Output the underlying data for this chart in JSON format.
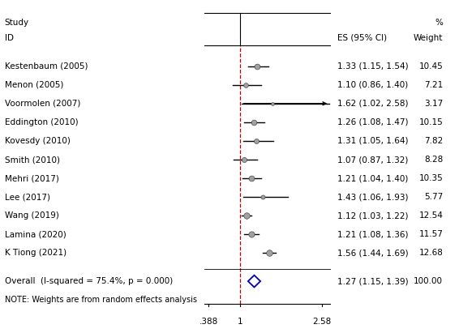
{
  "studies": [
    {
      "label": "Kestenbaum (2005)",
      "es": 1.33,
      "ci_lo": 1.15,
      "ci_hi": 1.54,
      "weight": 10.45
    },
    {
      "label": "Menon (2005)",
      "es": 1.1,
      "ci_lo": 0.86,
      "ci_hi": 1.4,
      "weight": 7.21
    },
    {
      "label": "Voormolen (2007)",
      "es": 1.62,
      "ci_lo": 1.02,
      "ci_hi": 2.58,
      "weight": 3.17,
      "arrow": true
    },
    {
      "label": "Eddington (2010)",
      "es": 1.26,
      "ci_lo": 1.08,
      "ci_hi": 1.47,
      "weight": 10.15
    },
    {
      "label": "Kovesdy (2010)",
      "es": 1.31,
      "ci_lo": 1.05,
      "ci_hi": 1.64,
      "weight": 7.82
    },
    {
      "label": "Smith (2010)",
      "es": 1.07,
      "ci_lo": 0.87,
      "ci_hi": 1.32,
      "weight": 8.28
    },
    {
      "label": "Mehri (2017)",
      "es": 1.21,
      "ci_lo": 1.04,
      "ci_hi": 1.4,
      "weight": 10.35
    },
    {
      "label": "Lee (2017)",
      "es": 1.43,
      "ci_lo": 1.06,
      "ci_hi": 1.93,
      "weight": 5.77
    },
    {
      "label": "Wang (2019)",
      "es": 1.12,
      "ci_lo": 1.03,
      "ci_hi": 1.22,
      "weight": 12.54
    },
    {
      "label": "Lamina (2020)",
      "es": 1.21,
      "ci_lo": 1.08,
      "ci_hi": 1.36,
      "weight": 11.57
    },
    {
      "label": "K Tiong (2021)",
      "es": 1.56,
      "ci_lo": 1.44,
      "ci_hi": 1.69,
      "weight": 12.68
    }
  ],
  "overall": {
    "label": "Overall  (I-squared = 75.4%, p = 0.000)",
    "es": 1.27,
    "ci_lo": 1.15,
    "ci_hi": 1.39,
    "weight": 100.0
  },
  "note": "NOTE: Weights are from random effects analysis",
  "xticks": [
    0.388,
    1.0,
    2.58
  ],
  "xticklabels": [
    ".388",
    "1",
    "2.58"
  ],
  "xmin": 0.3,
  "xmax": 2.75,
  "ref_line_x": 1.0,
  "marker_color": "#a0a0a0",
  "marker_edge": "#333333",
  "ci_color": "#000000",
  "dashed_color": "#c00000",
  "diamond_color": "#0000aa",
  "arrow_color": "#000000",
  "fontsize": 7.5,
  "header1_study": "Study",
  "header1_pct": "%",
  "header2_id": "ID",
  "header2_es": "ES (95% CI)",
  "header2_w": "Weight"
}
